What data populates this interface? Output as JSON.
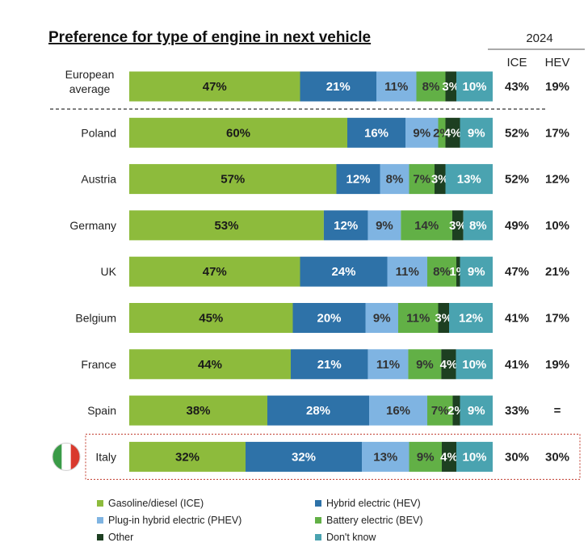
{
  "chart_data": {
    "type": "bar",
    "orientation": "horizontal",
    "stacked": true,
    "title": "Preference for type of engine in next vehicle",
    "year_header": "2024",
    "column_headers": [
      "ICE",
      "HEV"
    ],
    "colors": {
      "ICE": "#8dbb3c",
      "HEV": "#2e72a8",
      "PHEV": "#7fb4e2",
      "BEV": "#62b046",
      "Other": "#1d3f21",
      "DK": "#4aa3b0"
    },
    "label_colors": {
      "ICE": "#1a1a1a",
      "HEV": "#ffffff",
      "PHEV": "#333333",
      "BEV": "#333333",
      "Other": "#ffffff",
      "DK": "#ffffff"
    },
    "categories": [
      "European average",
      "Poland",
      "Austria",
      "Germany",
      "UK",
      "Belgium",
      "France",
      "Spain",
      "Italy"
    ],
    "series": [
      {
        "key": "ICE",
        "name": "Gasoline/diesel (ICE)",
        "values": [
          47,
          60,
          57,
          53,
          47,
          45,
          44,
          38,
          32
        ]
      },
      {
        "key": "HEV",
        "name": "Hybrid electric (HEV)",
        "values": [
          21,
          16,
          12,
          12,
          24,
          20,
          21,
          28,
          32
        ]
      },
      {
        "key": "PHEV",
        "name": "Plug-in hybrid electric (PHEV)",
        "values": [
          11,
          9,
          8,
          9,
          11,
          9,
          11,
          16,
          13
        ]
      },
      {
        "key": "BEV",
        "name": "Battery electric (BEV)",
        "values": [
          8,
          2,
          7,
          14,
          8,
          11,
          9,
          7,
          9
        ]
      },
      {
        "key": "Other",
        "name": "Other",
        "values": [
          3,
          4,
          3,
          3,
          1,
          3,
          4,
          2,
          4
        ]
      },
      {
        "key": "DK",
        "name": "Don't know",
        "values": [
          10,
          9,
          13,
          8,
          9,
          12,
          10,
          9,
          10
        ]
      }
    ],
    "ice_2024": [
      "43%",
      "52%",
      "52%",
      "49%",
      "47%",
      "41%",
      "41%",
      "33%",
      "30%"
    ],
    "hev_2024": [
      "19%",
      "17%",
      "12%",
      "10%",
      "21%",
      "17%",
      "19%",
      "=",
      "30%"
    ],
    "highlight": "Italy",
    "legend_position": "bottom"
  }
}
